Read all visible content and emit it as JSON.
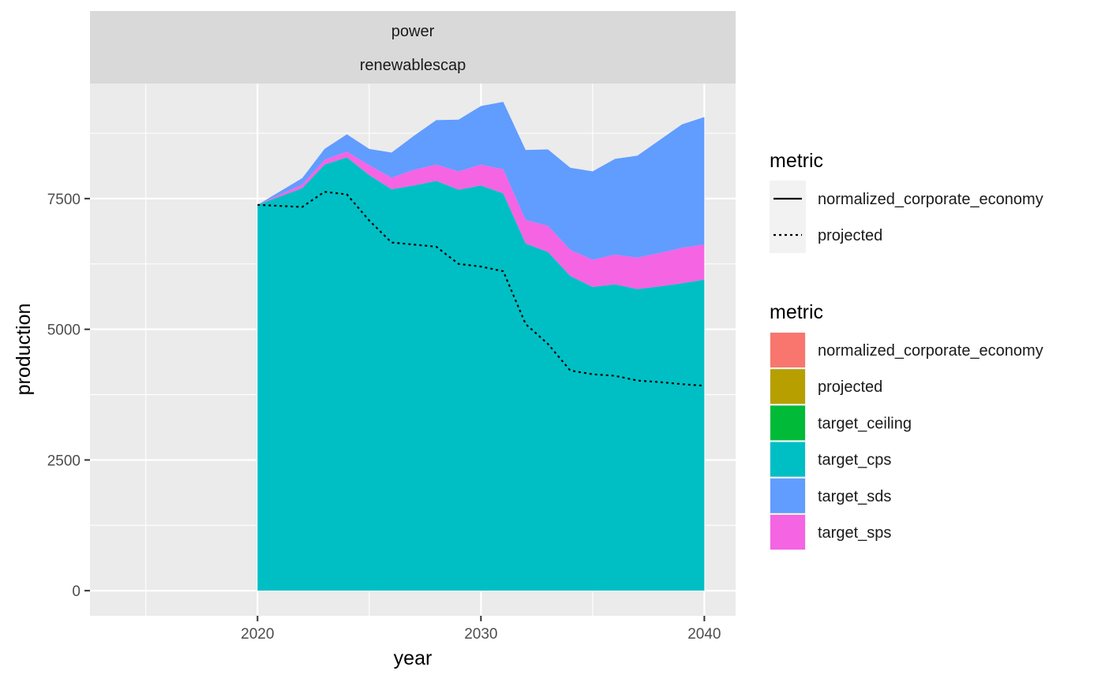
{
  "chart_data": {
    "type": "area",
    "facet_labels": [
      "power",
      "renewablescap"
    ],
    "xlabel": "year",
    "ylabel": "production",
    "xlim": [
      2012.5,
      2041.4
    ],
    "ylim": [
      -480,
      9700
    ],
    "x_ticks": [
      2020,
      2030,
      2040
    ],
    "y_ticks": [
      0,
      2500,
      5000,
      7500
    ],
    "grid": true,
    "legend_position": "right",
    "x": [
      2020,
      2022,
      2023,
      2024,
      2025,
      2026,
      2027,
      2028,
      2029,
      2030,
      2031,
      2032,
      2033,
      2034,
      2035,
      2036,
      2037,
      2038,
      2039,
      2040
    ],
    "stack_order": [
      "target_cps",
      "target_sps",
      "target_sds"
    ],
    "stacked_series": [
      {
        "name": "target_cps",
        "color": "#00BFC4",
        "values": [
          7380,
          7700,
          8150,
          8290,
          7950,
          7680,
          7750,
          7840,
          7670,
          7750,
          7600,
          6640,
          6480,
          6020,
          5810,
          5860,
          5770,
          5820,
          5880,
          5950
        ]
      },
      {
        "name": "target_sps",
        "color": "#F564E3",
        "values": [
          0,
          70,
          90,
          110,
          190,
          220,
          300,
          310,
          350,
          400,
          460,
          450,
          500,
          500,
          520,
          570,
          600,
          640,
          680,
          670
        ]
      },
      {
        "name": "target_sds",
        "color": "#619CFF",
        "values": [
          0,
          120,
          210,
          330,
          310,
          480,
          650,
          850,
          990,
          1120,
          1290,
          1340,
          1460,
          1570,
          1690,
          1830,
          1950,
          2160,
          2360,
          2440
        ]
      }
    ],
    "lines": [
      {
        "name": "projected",
        "dash": "dotted",
        "color": "#000000",
        "values": [
          7380,
          7340,
          7630,
          7580,
          7080,
          6660,
          6620,
          6580,
          6250,
          6200,
          6110,
          5100,
          4720,
          4210,
          4140,
          4110,
          4020,
          3990,
          3950,
          3920
        ]
      }
    ],
    "legends": [
      {
        "title": "metric",
        "kind": "line",
        "entries": [
          {
            "label": "normalized_corporate_economy",
            "dash": "solid"
          },
          {
            "label": "projected",
            "dash": "dotted"
          }
        ]
      },
      {
        "title": "metric",
        "kind": "fill",
        "entries": [
          {
            "label": "normalized_corporate_economy",
            "color": "#F8766D"
          },
          {
            "label": "projected",
            "color": "#B79F00"
          },
          {
            "label": "target_ceiling",
            "color": "#00BA38"
          },
          {
            "label": "target_cps",
            "color": "#00BFC4"
          },
          {
            "label": "target_sds",
            "color": "#619CFF"
          },
          {
            "label": "target_sps",
            "color": "#F564E3"
          }
        ]
      }
    ]
  }
}
